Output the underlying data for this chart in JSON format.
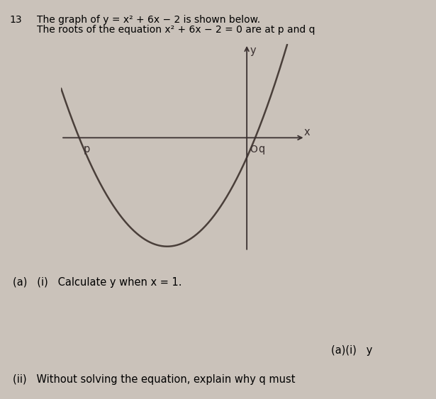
{
  "background_color": "#cac2ba",
  "fig_width": 6.15,
  "fig_height": 5.63,
  "header_num": "13",
  "header_line1": "The graph of y = x² + 6x − 2 is shown below.",
  "header_line2": "The roots of the equation x² + 6x − 2 = 0 are at p and q",
  "question_a_i": "(a)   (i)   Calculate y when x = 1.",
  "answer_label": "(a)(i)   y",
  "footer_text": "(ii)   Without solving the equation, explain why q must",
  "curve_color": "#4a3f3a",
  "axis_color": "#3a3030",
  "label_p": "p",
  "label_q": "q",
  "label_o": "O",
  "label_x": "x",
  "label_y": "y",
  "x_data_min": -7.0,
  "x_data_max": 2.2,
  "y_data_min": -11.5,
  "y_data_max": 9.5
}
